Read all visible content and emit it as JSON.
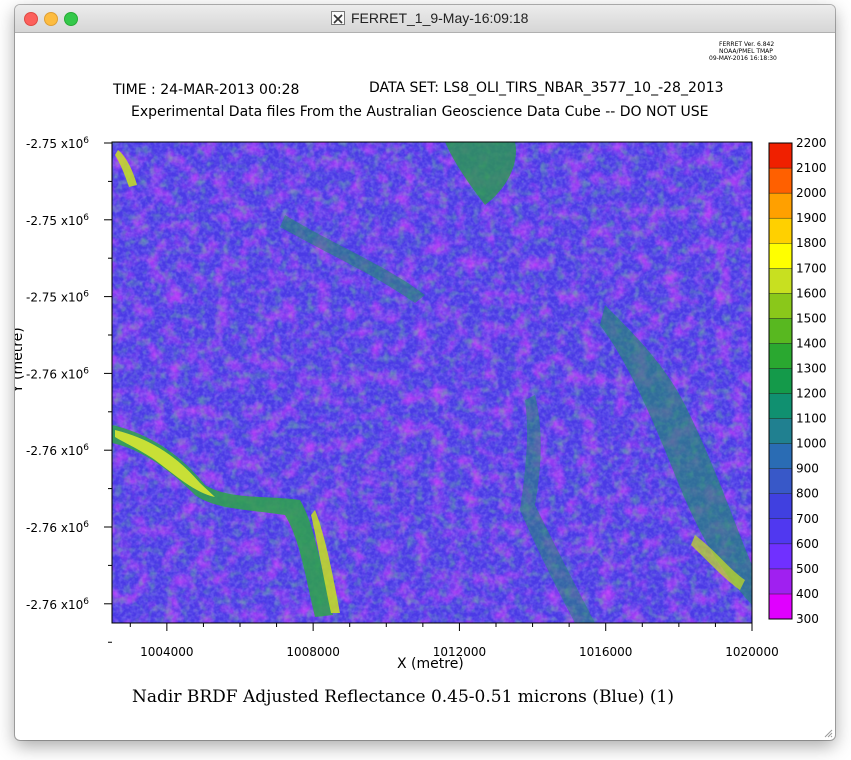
{
  "window": {
    "title": "FERRET_1_9-May-16:09:18"
  },
  "header": {
    "version_line1": "FERRET Ver. 6.842",
    "version_line2": "NOAA/PMEL TMAP",
    "version_line3": "09-MAY-2016 16:18:30",
    "time_label": "TIME : 24-MAR-2013 00:28",
    "dataset_label": "DATA SET: LS8_OLI_TIRS_NBAR_3577_10_-28_2013",
    "subtitle": "Experimental Data files From the Australian Geoscience Data Cube -- DO NOT USE"
  },
  "chart_data": {
    "type": "heatmap",
    "title": "Nadir BRDF Adjusted Reflectance 0.45-0.51 microns (Blue) (1)",
    "xlabel": "X (metre)",
    "ylabel": "Y (metre)",
    "xlim": [
      1002500,
      1020000
    ],
    "x_ticks": [
      1004000,
      1008000,
      1012000,
      1016000,
      1020000
    ],
    "x_tick_labels": [
      "1004000",
      "1008000",
      "1012000",
      "1016000",
      "1020000"
    ],
    "y_tick_mantissas": [
      "-2.75",
      "-2.75",
      "-2.75",
      "-2.76",
      "-2.76",
      "-2.76",
      "-2.76"
    ],
    "y_tick_exponent": "x10",
    "y_tick_power": "6",
    "colorbar": {
      "min": 300,
      "max": 2200,
      "step": 100,
      "labels": [
        "300",
        "400",
        "500",
        "600",
        "700",
        "800",
        "900",
        "1000",
        "1100",
        "1200",
        "1300",
        "1400",
        "1500",
        "1600",
        "1700",
        "1800",
        "1900",
        "2000",
        "2100",
        "2200"
      ],
      "colors": [
        "#e000ff",
        "#a020f0",
        "#7030ff",
        "#5038f0",
        "#4040e0",
        "#3858c8",
        "#2a6cb4",
        "#208090",
        "#109070",
        "#149a4a",
        "#2aa830",
        "#58b820",
        "#8ac81a",
        "#c8e020",
        "#ffff00",
        "#ffd000",
        "#ffa000",
        "#ff6000",
        "#f02000",
        "#d00000"
      ]
    }
  }
}
